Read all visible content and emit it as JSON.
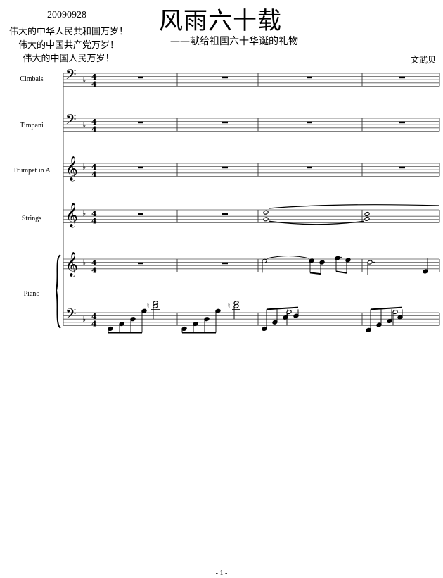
{
  "header": {
    "date": "20090928",
    "slogans": [
      "伟大的中华人民共和国万岁！",
      "伟大的中国共产党万岁！",
      "伟大的中国人民万岁！"
    ],
    "title": "风雨六十载",
    "subtitle": "——献给祖国六十华诞的礼物",
    "composer": "文武贝"
  },
  "score": {
    "key_signature": "F major (1 flat)",
    "time_signature": "4/4",
    "measures_shown": 4,
    "instruments": [
      {
        "name": "Cimbals",
        "clef": "bass"
      },
      {
        "name": "Timpani",
        "clef": "bass"
      },
      {
        "name": "Trumpet in A",
        "clef": "treble"
      },
      {
        "name": "Strings",
        "clef": "treble"
      },
      {
        "name": "Piano",
        "clef": "treble+bass"
      }
    ]
  },
  "footer": {
    "page_number": "- 1 -"
  }
}
